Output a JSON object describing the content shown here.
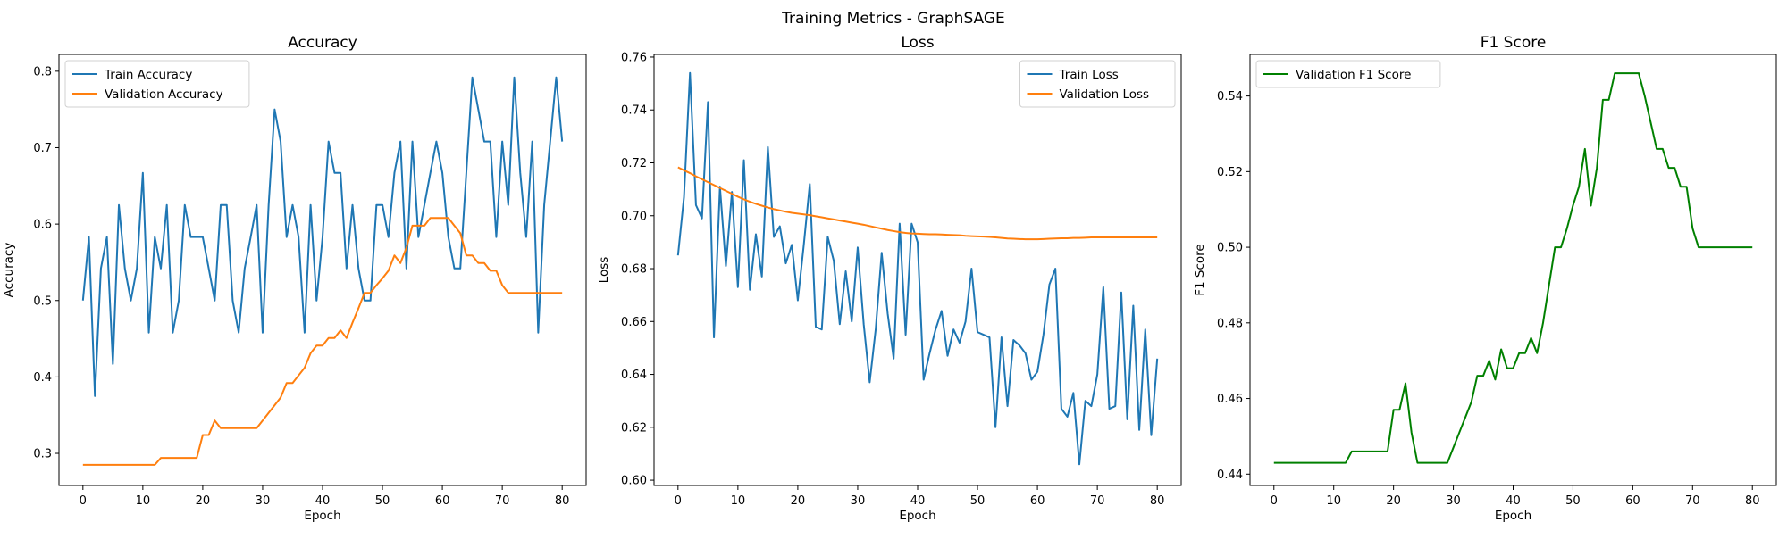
{
  "figure": {
    "suptitle": "Training Metrics - GraphSAGE"
  },
  "chart_data": [
    {
      "type": "line",
      "title": "Accuracy",
      "xlabel": "Epoch",
      "ylabel": "Accuracy",
      "xlim": [
        -4,
        84
      ],
      "ylim": [
        0.258,
        0.822
      ],
      "xticks": [
        0,
        10,
        20,
        30,
        40,
        50,
        60,
        70,
        80
      ],
      "yticks": [
        0.3,
        0.4,
        0.5,
        0.6,
        0.7,
        0.8
      ],
      "ytick_decimals": 1,
      "legend": "top-left",
      "series": [
        {
          "name": "Train Accuracy",
          "color": "#1f77b4",
          "x": [
            0,
            1,
            2,
            3,
            4,
            5,
            6,
            7,
            8,
            9,
            10,
            11,
            12,
            13,
            14,
            15,
            16,
            17,
            18,
            19,
            20,
            21,
            22,
            23,
            24,
            25,
            26,
            27,
            28,
            29,
            30,
            31,
            32,
            33,
            34,
            35,
            36,
            37,
            38,
            39,
            40,
            41,
            42,
            43,
            44,
            45,
            46,
            47,
            48,
            49,
            50,
            51,
            52,
            53,
            54,
            55,
            56,
            57,
            58,
            59,
            60,
            61,
            62,
            63,
            64,
            65,
            66,
            67,
            68,
            69,
            70,
            71,
            72,
            73,
            74,
            75,
            76,
            77,
            78,
            79,
            80
          ],
          "values": [
            0.5,
            0.583,
            0.375,
            0.542,
            0.583,
            0.417,
            0.625,
            0.542,
            0.5,
            0.542,
            0.667,
            0.458,
            0.583,
            0.542,
            0.625,
            0.458,
            0.5,
            0.625,
            0.583,
            0.583,
            0.583,
            0.542,
            0.5,
            0.625,
            0.625,
            0.5,
            0.458,
            0.542,
            0.583,
            0.625,
            0.458,
            0.625,
            0.75,
            0.708,
            0.583,
            0.625,
            0.583,
            0.458,
            0.625,
            0.5,
            0.583,
            0.708,
            0.667,
            0.667,
            0.542,
            0.625,
            0.542,
            0.5,
            0.5,
            0.625,
            0.625,
            0.583,
            0.667,
            0.708,
            0.542,
            0.708,
            0.583,
            0.625,
            0.667,
            0.708,
            0.667,
            0.583,
            0.542,
            0.542,
            0.667,
            0.792,
            0.75,
            0.708,
            0.708,
            0.583,
            0.708,
            0.625,
            0.792,
            0.667,
            0.583,
            0.708,
            0.458,
            0.625,
            0.708,
            0.792,
            0.708
          ]
        },
        {
          "name": "Validation Accuracy",
          "color": "#ff7f0e",
          "x": [
            0,
            1,
            2,
            3,
            4,
            5,
            6,
            7,
            8,
            9,
            10,
            11,
            12,
            13,
            14,
            15,
            16,
            17,
            18,
            19,
            20,
            21,
            22,
            23,
            24,
            25,
            26,
            27,
            28,
            29,
            30,
            31,
            32,
            33,
            34,
            35,
            36,
            37,
            38,
            39,
            40,
            41,
            42,
            43,
            44,
            45,
            46,
            47,
            48,
            49,
            50,
            51,
            52,
            53,
            54,
            55,
            56,
            57,
            58,
            59,
            60,
            61,
            62,
            63,
            64,
            65,
            66,
            67,
            68,
            69,
            70,
            71,
            72,
            73,
            74,
            75,
            76,
            77,
            78,
            79,
            80
          ],
          "values": [
            0.285,
            0.285,
            0.285,
            0.285,
            0.285,
            0.285,
            0.285,
            0.285,
            0.285,
            0.285,
            0.285,
            0.285,
            0.285,
            0.294,
            0.294,
            0.294,
            0.294,
            0.294,
            0.294,
            0.294,
            0.324,
            0.324,
            0.343,
            0.333,
            0.333,
            0.333,
            0.333,
            0.333,
            0.333,
            0.333,
            0.343,
            0.353,
            0.363,
            0.373,
            0.392,
            0.392,
            0.402,
            0.412,
            0.431,
            0.441,
            0.441,
            0.451,
            0.451,
            0.461,
            0.451,
            0.471,
            0.49,
            0.51,
            0.51,
            0.52,
            0.529,
            0.539,
            0.559,
            0.549,
            0.569,
            0.598,
            0.598,
            0.598,
            0.608,
            0.608,
            0.608,
            0.608,
            0.598,
            0.588,
            0.559,
            0.559,
            0.549,
            0.549,
            0.539,
            0.539,
            0.52,
            0.51,
            0.51,
            0.51,
            0.51,
            0.51,
            0.51,
            0.51,
            0.51,
            0.51,
            0.51
          ]
        }
      ]
    },
    {
      "type": "line",
      "title": "Loss",
      "xlabel": "Epoch",
      "ylabel": "Loss",
      "xlim": [
        -4,
        84
      ],
      "ylim": [
        0.598,
        0.761
      ],
      "xticks": [
        0,
        10,
        20,
        30,
        40,
        50,
        60,
        70,
        80
      ],
      "yticks": [
        0.6,
        0.62,
        0.64,
        0.66,
        0.68,
        0.7,
        0.72,
        0.74,
        0.76
      ],
      "ytick_decimals": 2,
      "legend": "top-right",
      "series": [
        {
          "name": "Train Loss",
          "color": "#1f77b4",
          "x": [
            0,
            1,
            2,
            3,
            4,
            5,
            6,
            7,
            8,
            9,
            10,
            11,
            12,
            13,
            14,
            15,
            16,
            17,
            18,
            19,
            20,
            21,
            22,
            23,
            24,
            25,
            26,
            27,
            28,
            29,
            30,
            31,
            32,
            33,
            34,
            35,
            36,
            37,
            38,
            39,
            40,
            41,
            42,
            43,
            44,
            45,
            46,
            47,
            48,
            49,
            50,
            51,
            52,
            53,
            54,
            55,
            56,
            57,
            58,
            59,
            60,
            61,
            62,
            63,
            64,
            65,
            66,
            67,
            68,
            69,
            70,
            71,
            72,
            73,
            74,
            75,
            76,
            77,
            78,
            79,
            80
          ],
          "values": [
            0.685,
            0.707,
            0.754,
            0.704,
            0.699,
            0.743,
            0.654,
            0.711,
            0.681,
            0.709,
            0.673,
            0.721,
            0.672,
            0.693,
            0.677,
            0.726,
            0.692,
            0.696,
            0.682,
            0.689,
            0.668,
            0.689,
            0.712,
            0.658,
            0.657,
            0.692,
            0.683,
            0.659,
            0.679,
            0.66,
            0.688,
            0.659,
            0.637,
            0.657,
            0.686,
            0.663,
            0.646,
            0.697,
            0.655,
            0.697,
            0.69,
            0.638,
            0.648,
            0.657,
            0.664,
            0.647,
            0.657,
            0.652,
            0.66,
            0.68,
            0.656,
            0.655,
            0.654,
            0.62,
            0.654,
            0.628,
            0.653,
            0.651,
            0.648,
            0.638,
            0.641,
            0.655,
            0.674,
            0.68,
            0.627,
            0.624,
            0.633,
            0.606,
            0.63,
            0.628,
            0.64,
            0.673,
            0.627,
            0.628,
            0.671,
            0.623,
            0.666,
            0.619,
            0.657,
            0.617,
            0.646
          ]
        },
        {
          "name": "Validation Loss",
          "color": "#ff7f0e",
          "x": [
            0,
            1,
            2,
            3,
            4,
            5,
            6,
            7,
            8,
            9,
            10,
            11,
            12,
            13,
            14,
            15,
            16,
            17,
            18,
            19,
            20,
            21,
            22,
            23,
            24,
            25,
            26,
            27,
            28,
            29,
            30,
            31,
            32,
            33,
            34,
            35,
            36,
            37,
            38,
            39,
            40,
            41,
            42,
            43,
            44,
            45,
            46,
            47,
            48,
            49,
            50,
            51,
            52,
            53,
            54,
            55,
            56,
            57,
            58,
            59,
            60,
            61,
            62,
            63,
            64,
            65,
            66,
            67,
            68,
            69,
            70,
            71,
            72,
            73,
            74,
            75,
            76,
            77,
            78,
            79,
            80
          ],
          "values": [
            0.7183,
            0.7172,
            0.7161,
            0.7149,
            0.7138,
            0.7127,
            0.7116,
            0.7105,
            0.7094,
            0.7083,
            0.7072,
            0.7062,
            0.7053,
            0.7045,
            0.7038,
            0.7031,
            0.7025,
            0.702,
            0.7015,
            0.7011,
            0.7008,
            0.7005,
            0.7002,
            0.6998,
            0.6994,
            0.699,
            0.6986,
            0.6982,
            0.6978,
            0.6974,
            0.697,
            0.6966,
            0.6961,
            0.6956,
            0.6951,
            0.6946,
            0.6942,
            0.6938,
            0.6935,
            0.6933,
            0.6932,
            0.6931,
            0.693,
            0.693,
            0.6929,
            0.6928,
            0.6927,
            0.6926,
            0.6924,
            0.6923,
            0.6922,
            0.6921,
            0.692,
            0.6918,
            0.6916,
            0.6914,
            0.6913,
            0.6912,
            0.6911,
            0.6911,
            0.6911,
            0.6912,
            0.6913,
            0.6914,
            0.6915,
            0.6915,
            0.6916,
            0.6916,
            0.6917,
            0.6918,
            0.6918,
            0.6918,
            0.6918,
            0.6918,
            0.6918,
            0.6918,
            0.6918,
            0.6918,
            0.6918,
            0.6918,
            0.6918
          ]
        }
      ]
    },
    {
      "type": "line",
      "title": "F1 Score",
      "xlabel": "Epoch",
      "ylabel": "F1 Score",
      "xlim": [
        -4,
        84
      ],
      "ylim": [
        0.437,
        0.551
      ],
      "xticks": [
        0,
        10,
        20,
        30,
        40,
        50,
        60,
        70,
        80
      ],
      "yticks": [
        0.44,
        0.46,
        0.48,
        0.5,
        0.52,
        0.54
      ],
      "ytick_decimals": 2,
      "legend": "top-left",
      "series": [
        {
          "name": "Validation F1 Score",
          "color": "#008000",
          "x": [
            0,
            1,
            2,
            3,
            4,
            5,
            6,
            7,
            8,
            9,
            10,
            11,
            12,
            13,
            14,
            15,
            16,
            17,
            18,
            19,
            20,
            21,
            22,
            23,
            24,
            25,
            26,
            27,
            28,
            29,
            30,
            31,
            32,
            33,
            34,
            35,
            36,
            37,
            38,
            39,
            40,
            41,
            42,
            43,
            44,
            45,
            46,
            47,
            48,
            49,
            50,
            51,
            52,
            53,
            54,
            55,
            56,
            57,
            58,
            59,
            60,
            61,
            62,
            63,
            64,
            65,
            66,
            67,
            68,
            69,
            70,
            71,
            72,
            73,
            74,
            75,
            76,
            77,
            78,
            79,
            80
          ],
          "values": [
            0.443,
            0.443,
            0.443,
            0.443,
            0.443,
            0.443,
            0.443,
            0.443,
            0.443,
            0.443,
            0.443,
            0.443,
            0.443,
            0.446,
            0.446,
            0.446,
            0.446,
            0.446,
            0.446,
            0.446,
            0.457,
            0.457,
            0.464,
            0.451,
            0.443,
            0.443,
            0.443,
            0.443,
            0.443,
            0.443,
            0.447,
            0.451,
            0.455,
            0.459,
            0.466,
            0.466,
            0.47,
            0.465,
            0.473,
            0.468,
            0.468,
            0.472,
            0.472,
            0.476,
            0.472,
            0.48,
            0.49,
            0.5,
            0.5,
            0.505,
            0.511,
            0.516,
            0.526,
            0.511,
            0.521,
            0.539,
            0.539,
            0.546,
            0.546,
            0.546,
            0.546,
            0.546,
            0.54,
            0.533,
            0.526,
            0.526,
            0.521,
            0.521,
            0.516,
            0.516,
            0.505,
            0.5,
            0.5,
            0.5,
            0.5,
            0.5,
            0.5,
            0.5,
            0.5,
            0.5,
            0.5
          ]
        }
      ]
    }
  ]
}
